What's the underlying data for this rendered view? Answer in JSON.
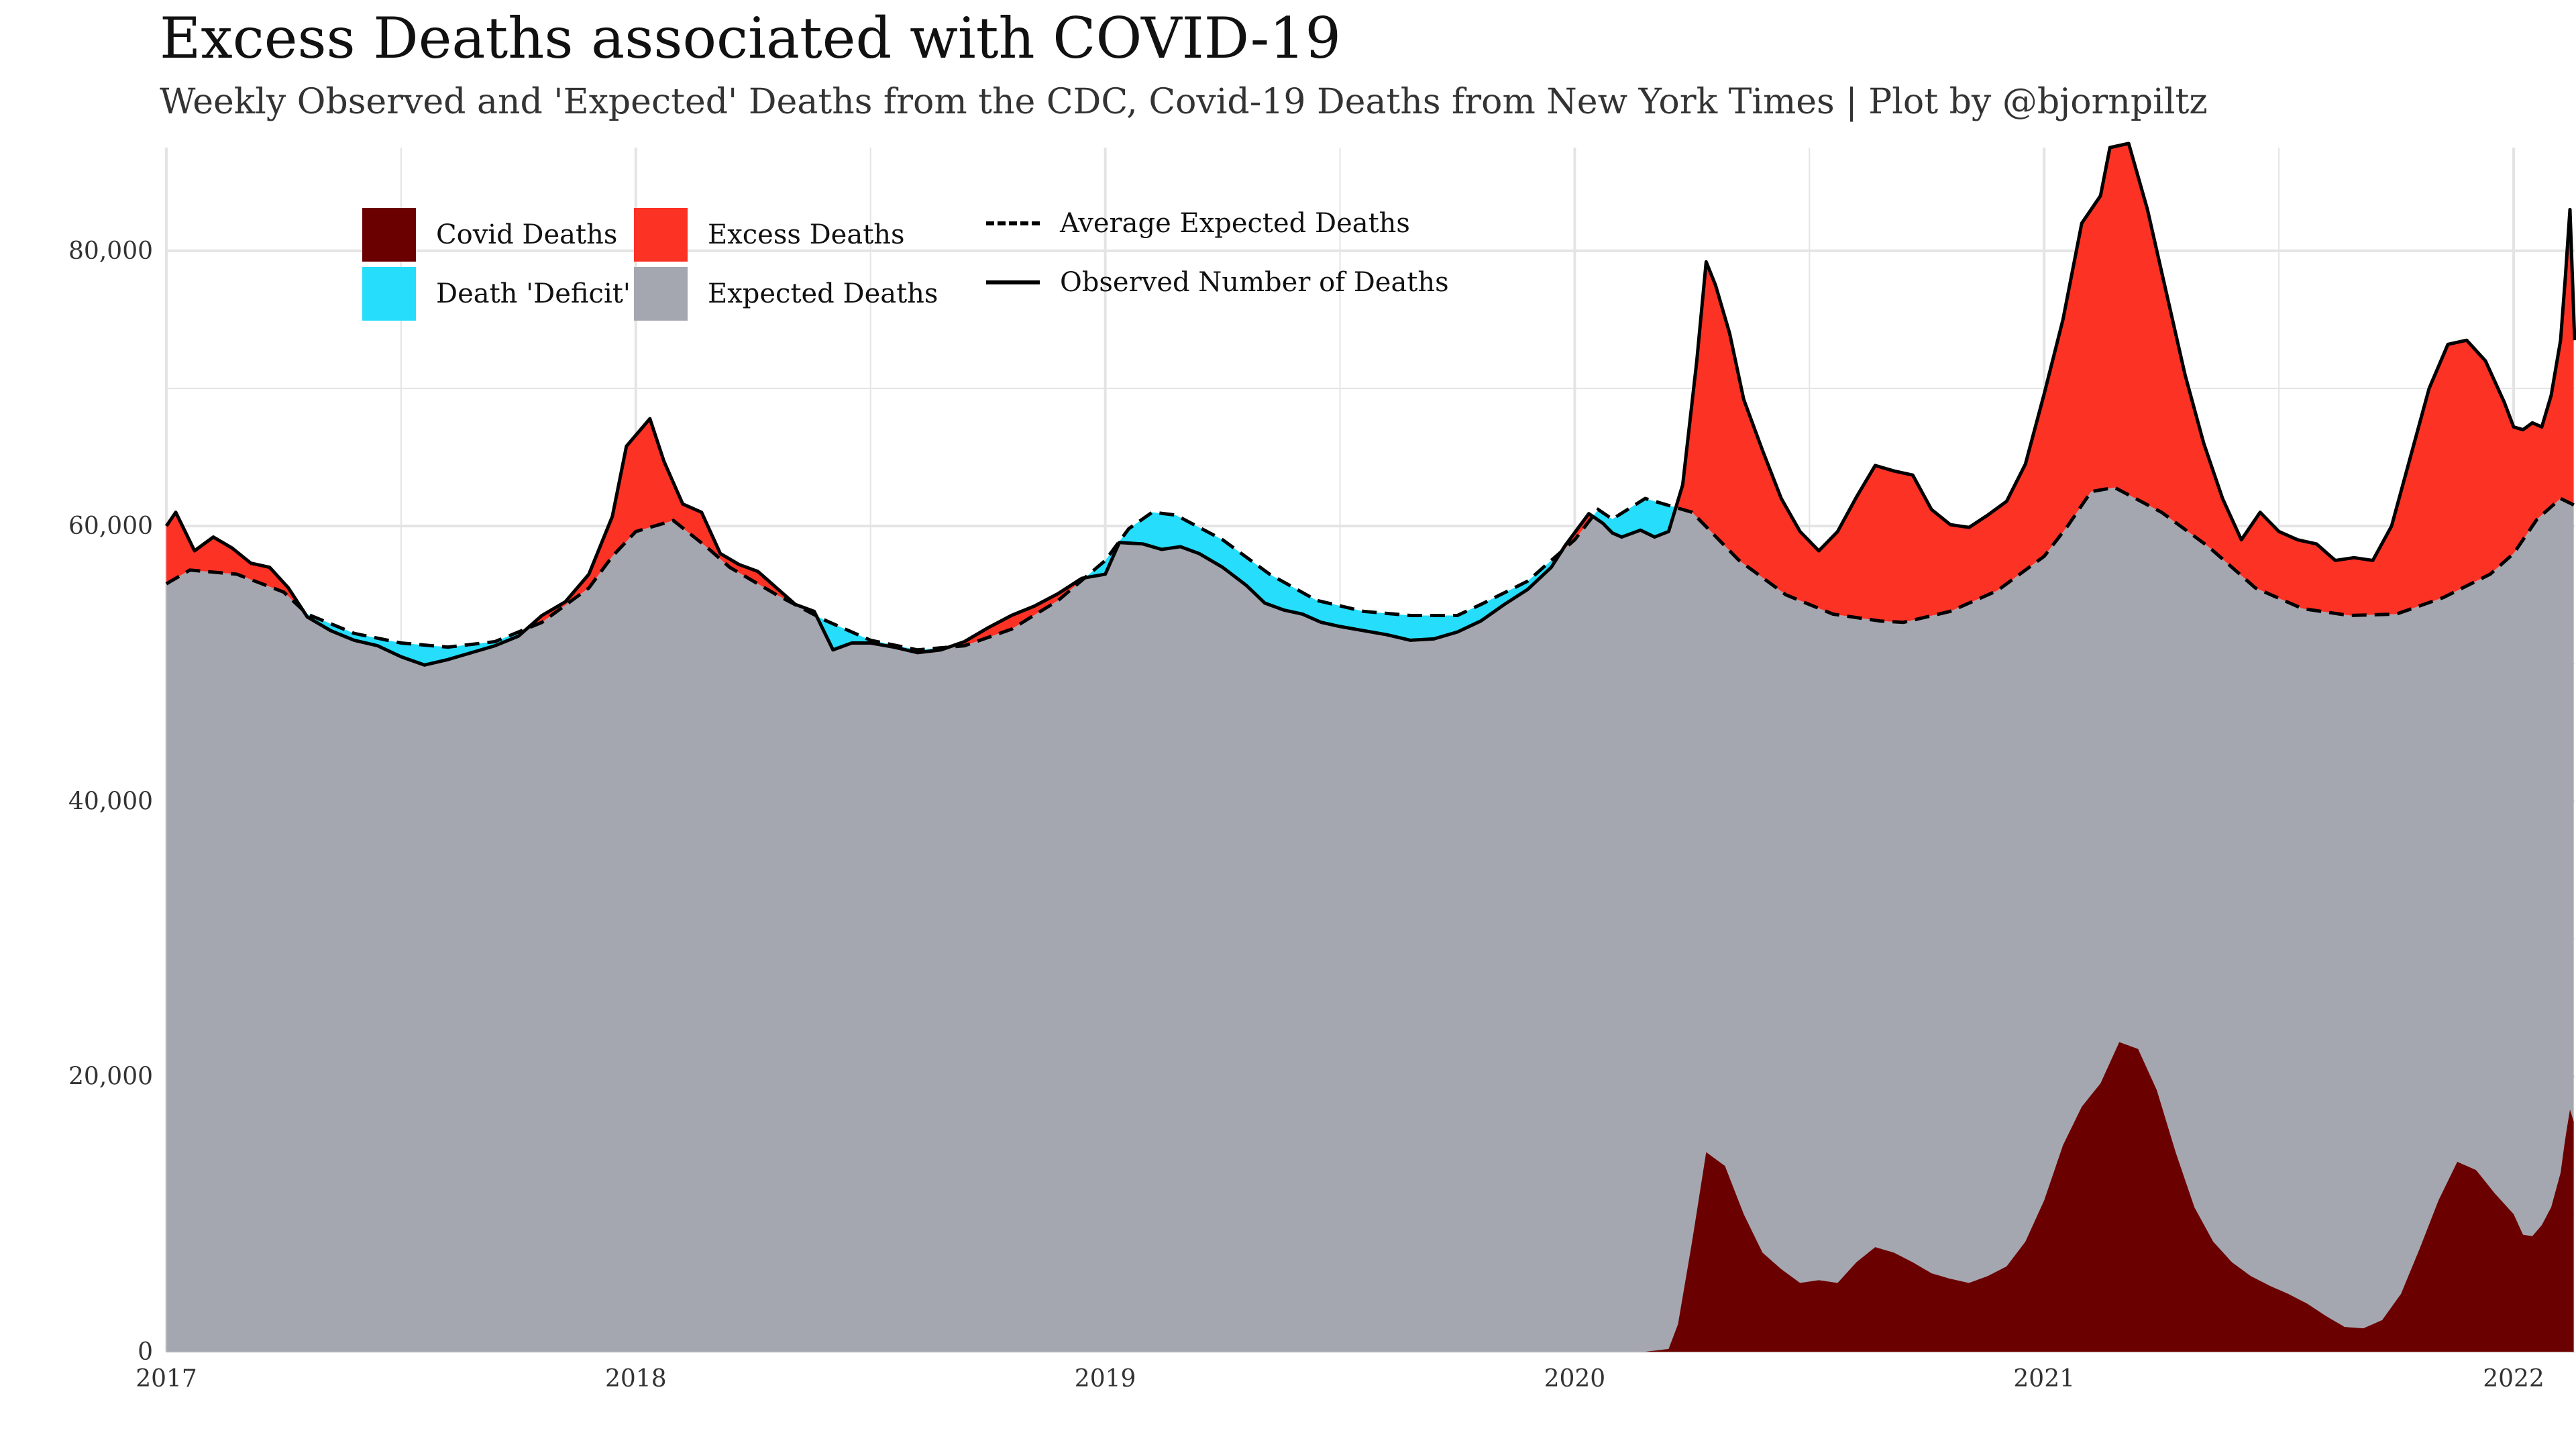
{
  "title": "Excess Deaths associated with COVID-19",
  "subtitle": "Weekly Observed and 'Expected' Deaths from the CDC, Covid-19 Deaths from New York Times | Plot by @bjornpiltz",
  "legend": {
    "covid": "Covid Deaths",
    "excess": "Excess Deaths",
    "avg_expected": "Average Expected Deaths",
    "deficit": "Death 'Deficit'",
    "expected": "Expected Deaths",
    "observed": "Observed Number of Deaths"
  },
  "colors": {
    "covid": "#6b0000",
    "excess": "#fc3225",
    "deficit": "#26ddfb",
    "expected": "#a5a7b0",
    "line": "#000000",
    "grid": "#e4e4e4"
  },
  "chart_data": {
    "type": "area",
    "x_ticks": [
      2017,
      2018,
      2019,
      2020,
      2021,
      2022
    ],
    "y_ticks": [
      0,
      20000,
      40000,
      60000,
      80000
    ],
    "y_tick_labels": [
      "0",
      "20,000",
      "40,000",
      "60,000",
      "80,000"
    ],
    "xlim": [
      2017.0,
      2022.13
    ],
    "ylim": [
      0,
      87500
    ],
    "grid": true,
    "legend_position": "top-left",
    "series": [
      {
        "name": "Average Expected Deaths",
        "points": [
          [
            2017.0,
            55800
          ],
          [
            2017.05,
            56800
          ],
          [
            2017.15,
            56500
          ],
          [
            2017.25,
            55200
          ],
          [
            2017.3,
            53600
          ],
          [
            2017.4,
            52200
          ],
          [
            2017.5,
            51500
          ],
          [
            2017.6,
            51200
          ],
          [
            2017.7,
            51600
          ],
          [
            2017.8,
            53000
          ],
          [
            2017.9,
            55500
          ],
          [
            2017.95,
            57800
          ],
          [
            2018.0,
            59600
          ],
          [
            2018.08,
            60400
          ],
          [
            2018.15,
            58500
          ],
          [
            2018.2,
            57000
          ],
          [
            2018.3,
            55000
          ],
          [
            2018.4,
            53200
          ],
          [
            2018.5,
            51700
          ],
          [
            2018.6,
            51000
          ],
          [
            2018.7,
            51300
          ],
          [
            2018.8,
            52500
          ],
          [
            2018.9,
            54600
          ],
          [
            2019.0,
            57500
          ],
          [
            2019.05,
            59800
          ],
          [
            2019.1,
            61000
          ],
          [
            2019.15,
            60800
          ],
          [
            2019.25,
            59000
          ],
          [
            2019.35,
            56500
          ],
          [
            2019.45,
            54600
          ],
          [
            2019.55,
            53800
          ],
          [
            2019.65,
            53500
          ],
          [
            2019.75,
            53500
          ],
          [
            2019.8,
            54300
          ],
          [
            2019.9,
            56000
          ],
          [
            2020.0,
            59000
          ],
          [
            2020.05,
            61200
          ],
          [
            2020.08,
            60500
          ],
          [
            2020.15,
            62000
          ],
          [
            2020.25,
            61000
          ],
          [
            2020.35,
            57500
          ],
          [
            2020.45,
            55000
          ],
          [
            2020.55,
            53600
          ],
          [
            2020.65,
            53100
          ],
          [
            2020.7,
            53000
          ],
          [
            2020.8,
            53800
          ],
          [
            2020.9,
            55300
          ],
          [
            2021.0,
            57800
          ],
          [
            2021.05,
            60000
          ],
          [
            2021.1,
            62500
          ],
          [
            2021.15,
            62800
          ],
          [
            2021.25,
            61000
          ],
          [
            2021.35,
            58500
          ],
          [
            2021.45,
            55500
          ],
          [
            2021.55,
            54000
          ],
          [
            2021.65,
            53500
          ],
          [
            2021.75,
            53600
          ],
          [
            2021.85,
            54800
          ],
          [
            2021.95,
            56500
          ],
          [
            2022.0,
            58000
          ],
          [
            2022.05,
            60500
          ],
          [
            2022.1,
            62000
          ],
          [
            2022.13,
            61500
          ]
        ]
      },
      {
        "name": "Observed Number of Deaths",
        "points": [
          [
            2017.0,
            60000
          ],
          [
            2017.02,
            61000
          ],
          [
            2017.06,
            58200
          ],
          [
            2017.1,
            59200
          ],
          [
            2017.14,
            58400
          ],
          [
            2017.18,
            57300
          ],
          [
            2017.22,
            57000
          ],
          [
            2017.26,
            55500
          ],
          [
            2017.3,
            53400
          ],
          [
            2017.35,
            52400
          ],
          [
            2017.4,
            51700
          ],
          [
            2017.45,
            51300
          ],
          [
            2017.5,
            50500
          ],
          [
            2017.55,
            49900
          ],
          [
            2017.6,
            50300
          ],
          [
            2017.65,
            50800
          ],
          [
            2017.7,
            51300
          ],
          [
            2017.75,
            52000
          ],
          [
            2017.8,
            53500
          ],
          [
            2017.85,
            54500
          ],
          [
            2017.9,
            56500
          ],
          [
            2017.95,
            60700
          ],
          [
            2017.98,
            65800
          ],
          [
            2018.03,
            67800
          ],
          [
            2018.06,
            64700
          ],
          [
            2018.1,
            61600
          ],
          [
            2018.14,
            61000
          ],
          [
            2018.18,
            58000
          ],
          [
            2018.22,
            57200
          ],
          [
            2018.26,
            56700
          ],
          [
            2018.3,
            55500
          ],
          [
            2018.34,
            54300
          ],
          [
            2018.38,
            53800
          ],
          [
            2018.42,
            51000
          ],
          [
            2018.46,
            51500
          ],
          [
            2018.5,
            51500
          ],
          [
            2018.55,
            51200
          ],
          [
            2018.6,
            50800
          ],
          [
            2018.65,
            51000
          ],
          [
            2018.7,
            51600
          ],
          [
            2018.75,
            52600
          ],
          [
            2018.8,
            53500
          ],
          [
            2018.85,
            54200
          ],
          [
            2018.9,
            55100
          ],
          [
            2018.95,
            56200
          ],
          [
            2019.0,
            56500
          ],
          [
            2019.03,
            58800
          ],
          [
            2019.08,
            58700
          ],
          [
            2019.12,
            58300
          ],
          [
            2019.16,
            58500
          ],
          [
            2019.2,
            58000
          ],
          [
            2019.25,
            57000
          ],
          [
            2019.3,
            55700
          ],
          [
            2019.34,
            54400
          ],
          [
            2019.38,
            53900
          ],
          [
            2019.42,
            53600
          ],
          [
            2019.46,
            53000
          ],
          [
            2019.5,
            52700
          ],
          [
            2019.55,
            52400
          ],
          [
            2019.6,
            52100
          ],
          [
            2019.65,
            51700
          ],
          [
            2019.7,
            51800
          ],
          [
            2019.75,
            52300
          ],
          [
            2019.8,
            53100
          ],
          [
            2019.85,
            54300
          ],
          [
            2019.9,
            55400
          ],
          [
            2019.95,
            57000
          ],
          [
            2019.98,
            58600
          ],
          [
            2020.03,
            60900
          ],
          [
            2020.06,
            60200
          ],
          [
            2020.08,
            59500
          ],
          [
            2020.1,
            59200
          ],
          [
            2020.14,
            59700
          ],
          [
            2020.17,
            59200
          ],
          [
            2020.2,
            59600
          ],
          [
            2020.23,
            63000
          ],
          [
            2020.26,
            72000
          ],
          [
            2020.28,
            79200
          ],
          [
            2020.3,
            77500
          ],
          [
            2020.33,
            74000
          ],
          [
            2020.36,
            69200
          ],
          [
            2020.4,
            65500
          ],
          [
            2020.44,
            62000
          ],
          [
            2020.48,
            59600
          ],
          [
            2020.52,
            58200
          ],
          [
            2020.56,
            59600
          ],
          [
            2020.6,
            62100
          ],
          [
            2020.64,
            64400
          ],
          [
            2020.68,
            64000
          ],
          [
            2020.72,
            63700
          ],
          [
            2020.76,
            61200
          ],
          [
            2020.8,
            60100
          ],
          [
            2020.84,
            59900
          ],
          [
            2020.88,
            60800
          ],
          [
            2020.92,
            61800
          ],
          [
            2020.96,
            64500
          ],
          [
            2021.0,
            69600
          ],
          [
            2021.04,
            75000
          ],
          [
            2021.08,
            82000
          ],
          [
            2021.12,
            84000
          ],
          [
            2021.14,
            87500
          ],
          [
            2021.18,
            87800
          ],
          [
            2021.22,
            83000
          ],
          [
            2021.26,
            77000
          ],
          [
            2021.3,
            71000
          ],
          [
            2021.34,
            66000
          ],
          [
            2021.38,
            62000
          ],
          [
            2021.42,
            59000
          ],
          [
            2021.46,
            61000
          ],
          [
            2021.5,
            59600
          ],
          [
            2021.54,
            59000
          ],
          [
            2021.58,
            58700
          ],
          [
            2021.62,
            57500
          ],
          [
            2021.66,
            57700
          ],
          [
            2021.7,
            57500
          ],
          [
            2021.74,
            60000
          ],
          [
            2021.78,
            65000
          ],
          [
            2021.82,
            70000
          ],
          [
            2021.86,
            73200
          ],
          [
            2021.9,
            73500
          ],
          [
            2021.94,
            72000
          ],
          [
            2021.98,
            69000
          ],
          [
            2022.0,
            67200
          ],
          [
            2022.02,
            67000
          ],
          [
            2022.04,
            67500
          ],
          [
            2022.06,
            67200
          ],
          [
            2022.08,
            69500
          ],
          [
            2022.1,
            73500
          ],
          [
            2022.11,
            78000
          ],
          [
            2022.12,
            83000
          ],
          [
            2022.13,
            73500
          ]
        ]
      },
      {
        "name": "Covid Deaths",
        "points": [
          [
            2017.0,
            0
          ],
          [
            2020.15,
            0
          ],
          [
            2020.2,
            200
          ],
          [
            2020.22,
            2000
          ],
          [
            2020.25,
            8000
          ],
          [
            2020.28,
            14500
          ],
          [
            2020.32,
            13500
          ],
          [
            2020.36,
            10000
          ],
          [
            2020.4,
            7200
          ],
          [
            2020.44,
            6000
          ],
          [
            2020.48,
            5000
          ],
          [
            2020.52,
            5200
          ],
          [
            2020.56,
            5000
          ],
          [
            2020.6,
            6500
          ],
          [
            2020.64,
            7600
          ],
          [
            2020.68,
            7200
          ],
          [
            2020.72,
            6500
          ],
          [
            2020.76,
            5700
          ],
          [
            2020.8,
            5300
          ],
          [
            2020.84,
            5000
          ],
          [
            2020.88,
            5500
          ],
          [
            2020.92,
            6200
          ],
          [
            2020.96,
            8000
          ],
          [
            2021.0,
            11000
          ],
          [
            2021.04,
            15000
          ],
          [
            2021.08,
            17800
          ],
          [
            2021.12,
            19500
          ],
          [
            2021.16,
            22500
          ],
          [
            2021.2,
            22000
          ],
          [
            2021.24,
            19000
          ],
          [
            2021.28,
            14500
          ],
          [
            2021.32,
            10500
          ],
          [
            2021.36,
            8000
          ],
          [
            2021.4,
            6500
          ],
          [
            2021.44,
            5500
          ],
          [
            2021.48,
            4800
          ],
          [
            2021.52,
            4200
          ],
          [
            2021.56,
            3500
          ],
          [
            2021.6,
            2600
          ],
          [
            2021.64,
            1800
          ],
          [
            2021.68,
            1700
          ],
          [
            2021.72,
            2300
          ],
          [
            2021.76,
            4200
          ],
          [
            2021.8,
            7500
          ],
          [
            2021.84,
            11000
          ],
          [
            2021.88,
            13800
          ],
          [
            2021.92,
            13200
          ],
          [
            2021.96,
            11500
          ],
          [
            2022.0,
            10000
          ],
          [
            2022.02,
            8500
          ],
          [
            2022.04,
            8400
          ],
          [
            2022.06,
            9200
          ],
          [
            2022.08,
            10500
          ],
          [
            2022.1,
            13000
          ],
          [
            2022.11,
            15500
          ],
          [
            2022.12,
            17600
          ],
          [
            2022.13,
            16500
          ]
        ]
      }
    ]
  }
}
